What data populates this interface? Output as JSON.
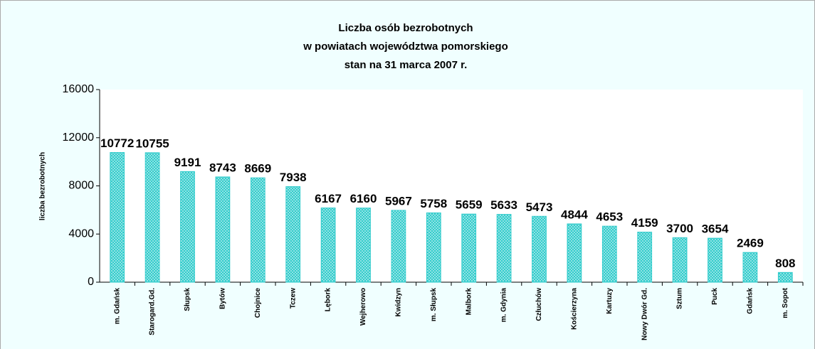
{
  "chart_data": {
    "type": "bar",
    "title": [
      "Liczba osób bezrobotnych",
      "w powiatach województwa pomorskiego",
      "stan na 31 marca 2007 r."
    ],
    "y_label": "liczba bezrobotnych",
    "categories": [
      "m. Gdańsk",
      "Starogard.Gd.",
      "Słupsk",
      "Bytów",
      "Chojnice",
      "Tczew",
      "Lębork",
      "Wejherowo",
      "Kwidzyn",
      "m. Słupsk",
      "Malbork",
      "m. Gdynia",
      "Człuchów",
      "Kościerzyna",
      "Kartuzy",
      "Nowy Dwór Gd.",
      "Sztum",
      "Puck",
      "Gdańsk",
      "m. Sopot"
    ],
    "values": [
      10772,
      10755,
      9191,
      8743,
      8669,
      7938,
      6167,
      6160,
      5967,
      5758,
      5659,
      5633,
      5473,
      4844,
      4653,
      4159,
      3700,
      3654,
      2469,
      808
    ],
    "color": "#33cccc",
    "ylim": [
      0,
      16000
    ],
    "yticks": [
      0,
      4000,
      8000,
      12000,
      16000
    ],
    "grid": false
  }
}
